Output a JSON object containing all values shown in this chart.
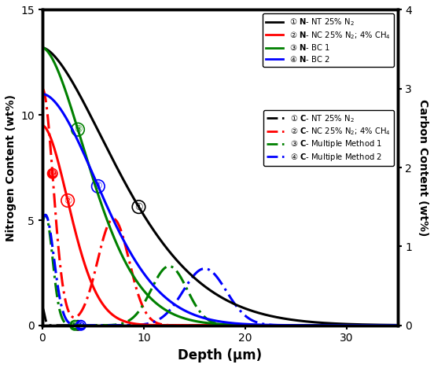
{
  "xlabel": "Depth (μm)",
  "ylabel_left": "Nitrogen Content (wt%)",
  "ylabel_right": "Carbon Content (wt%)",
  "xlim": [
    0,
    35
  ],
  "ylim_left": [
    0,
    15
  ],
  "ylim_right": [
    0,
    4
  ],
  "colors": [
    "black",
    "red",
    "green",
    "blue"
  ],
  "bg_color": "#ffffff",
  "plot_bg": "#ffffff"
}
